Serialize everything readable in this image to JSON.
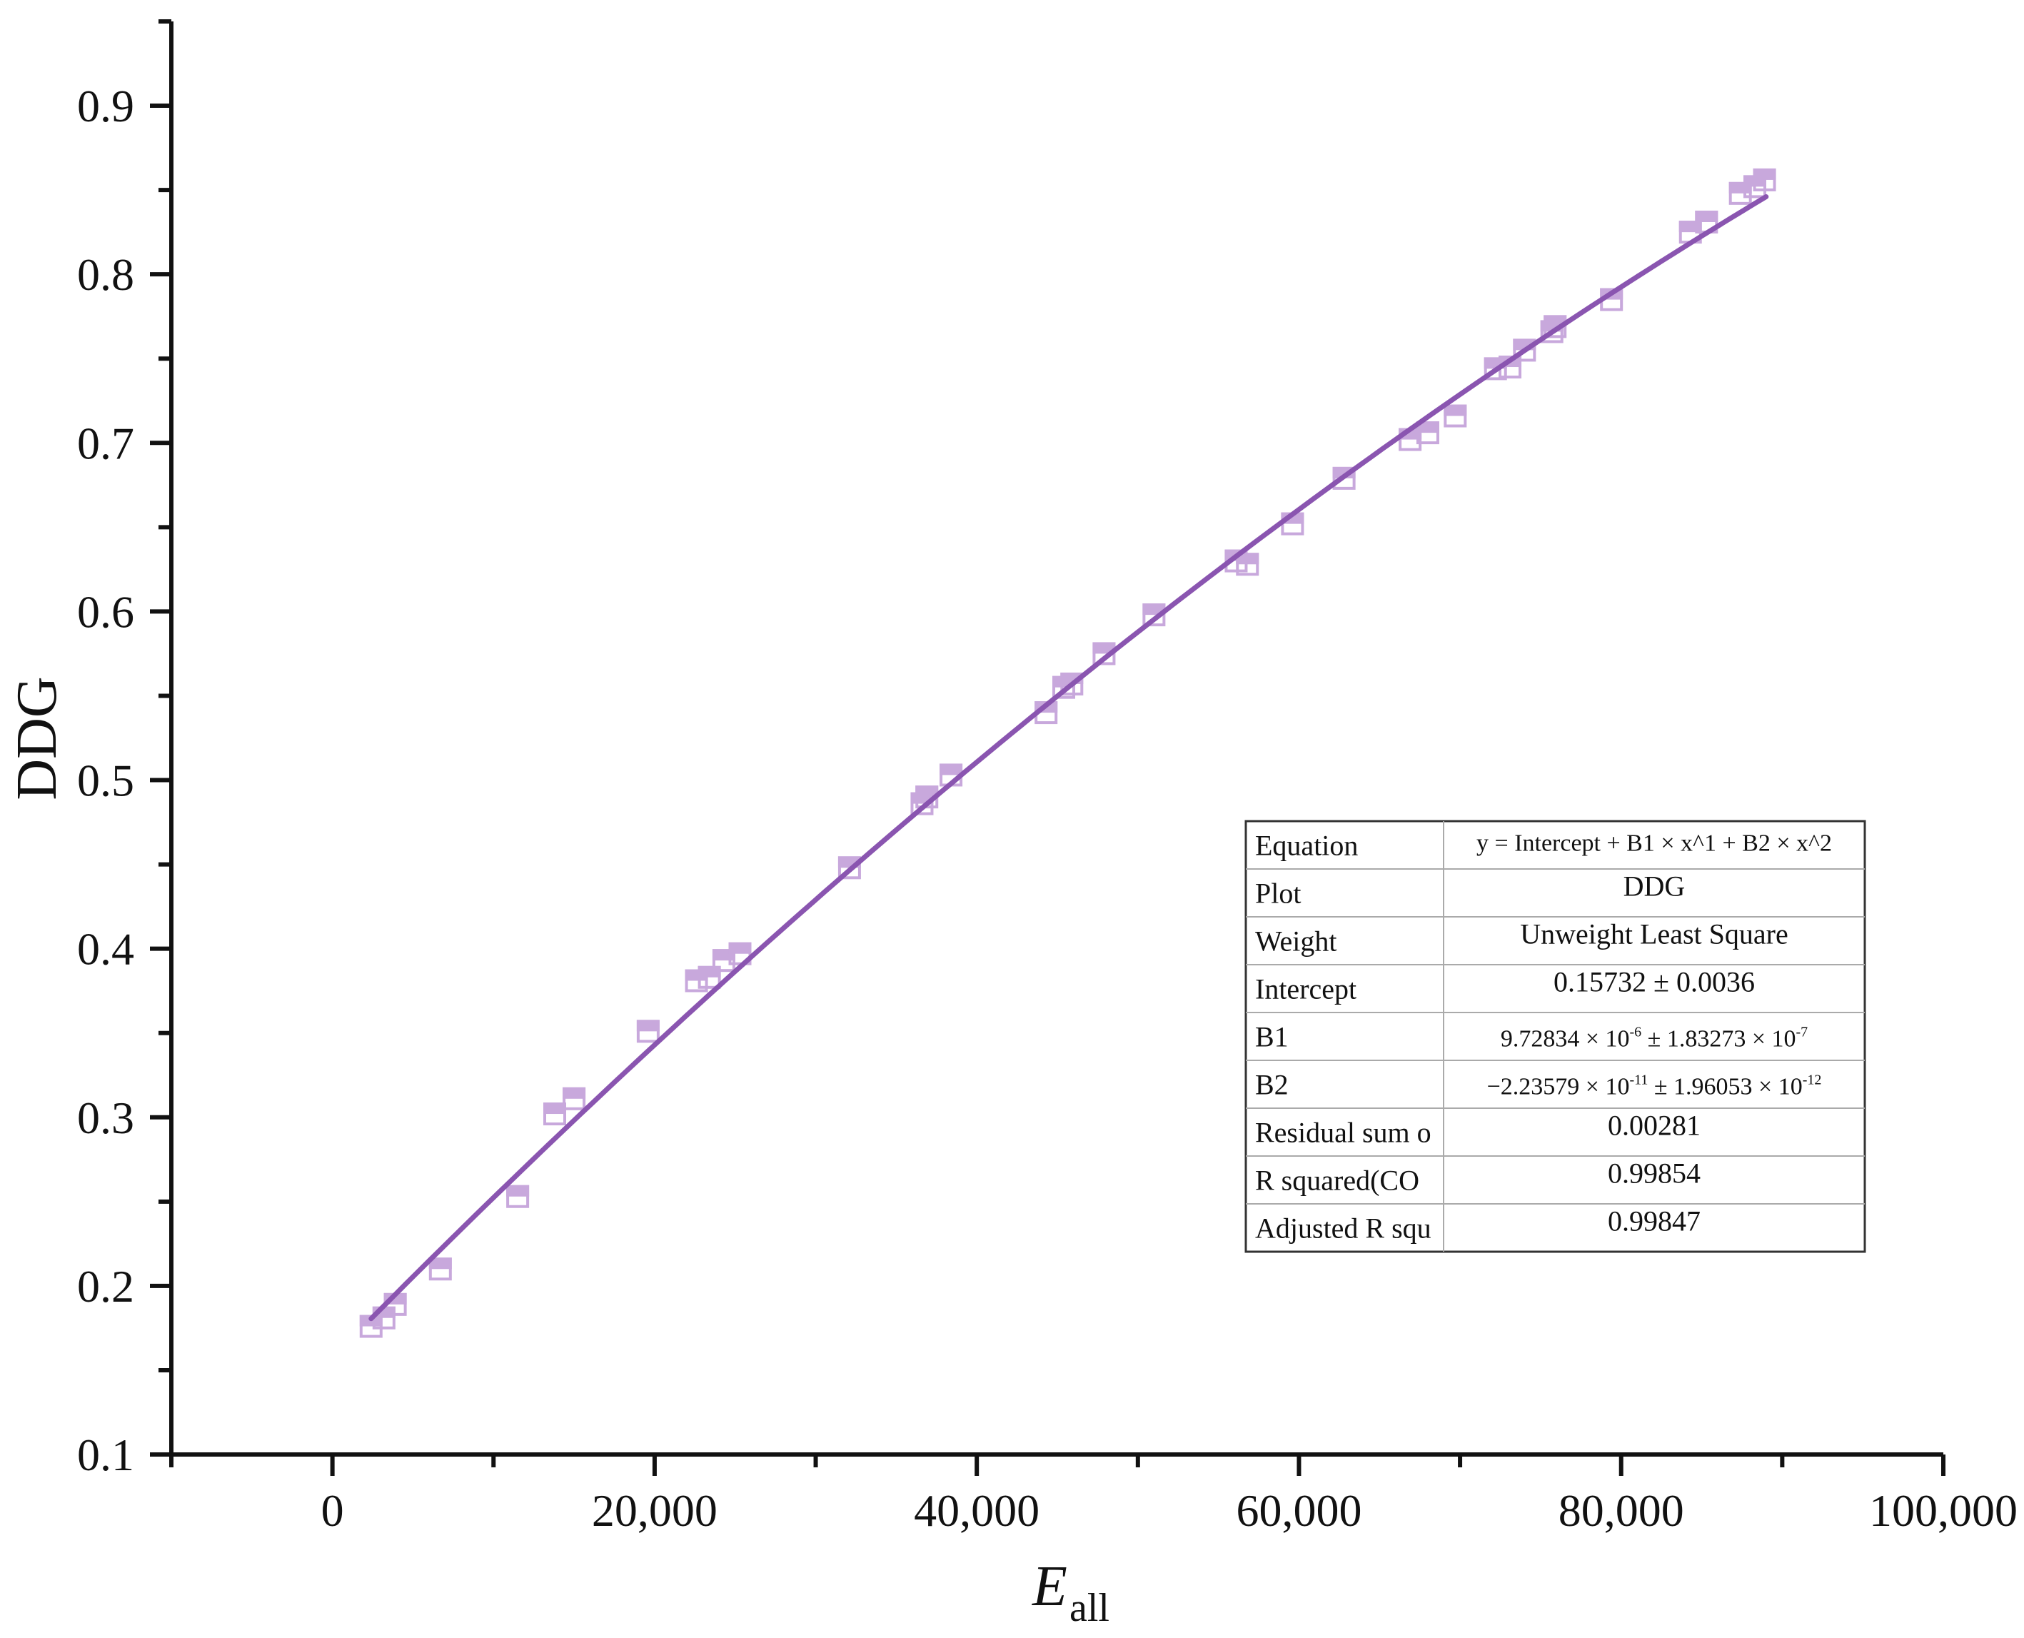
{
  "chart_data": {
    "type": "scatter",
    "xlabel": "E",
    "xlabel_subscript": "all",
    "ylabel": "DDG",
    "xlim": [
      -10000,
      100000
    ],
    "ylim": [
      0.1,
      0.95
    ],
    "x_ticks": [
      0,
      20000,
      40000,
      60000,
      80000,
      100000
    ],
    "x_tick_labels": [
      "0",
      "20,000",
      "40,000",
      "60,000",
      "80,000",
      "100,000"
    ],
    "y_ticks": [
      0.1,
      0.2,
      0.3,
      0.4,
      0.5,
      0.6,
      0.7,
      0.8,
      0.9
    ],
    "y_tick_labels": [
      "0.1",
      "0.2",
      "0.3",
      "0.4",
      "0.5",
      "0.6",
      "0.7",
      "0.8",
      "0.9"
    ],
    "grid": false,
    "colors": {
      "marker": "#c8a8dc",
      "fit_line": "#8a55b0",
      "axis": "#111111"
    },
    "series": [
      {
        "kind": "scatter",
        "marker": "half-filled-square",
        "points": [
          [
            2400,
            0.176
          ],
          [
            3200,
            0.181
          ],
          [
            3900,
            0.189
          ],
          [
            6700,
            0.21
          ],
          [
            11500,
            0.253
          ],
          [
            13800,
            0.302
          ],
          [
            15000,
            0.311
          ],
          [
            19600,
            0.351
          ],
          [
            22600,
            0.381
          ],
          [
            23400,
            0.383
          ],
          [
            24300,
            0.393
          ],
          [
            25300,
            0.397
          ],
          [
            32100,
            0.448
          ],
          [
            36600,
            0.486
          ],
          [
            36900,
            0.49
          ],
          [
            38400,
            0.503
          ],
          [
            44300,
            0.54
          ],
          [
            45400,
            0.555
          ],
          [
            45900,
            0.557
          ],
          [
            47900,
            0.575
          ],
          [
            51000,
            0.598
          ],
          [
            56100,
            0.63
          ],
          [
            56800,
            0.628
          ],
          [
            59600,
            0.652
          ],
          [
            62800,
            0.679
          ],
          [
            66900,
            0.702
          ],
          [
            68000,
            0.706
          ],
          [
            69700,
            0.716
          ],
          [
            72200,
            0.744
          ],
          [
            73100,
            0.745
          ],
          [
            74000,
            0.755
          ],
          [
            75700,
            0.766
          ],
          [
            75900,
            0.769
          ],
          [
            79400,
            0.785
          ],
          [
            84300,
            0.825
          ],
          [
            85300,
            0.831
          ],
          [
            87400,
            0.848
          ],
          [
            88300,
            0.852
          ],
          [
            88900,
            0.856
          ]
        ]
      },
      {
        "kind": "fit-line",
        "equation": {
          "intercept": 0.15732,
          "b1": 9.72834e-06,
          "b2": -2.23579e-11
        },
        "x_range": [
          2400,
          89000
        ]
      }
    ]
  },
  "fit_table": {
    "rows": [
      {
        "label": "Equation",
        "value": "y = Intercept + B1 × x^1   + B2 × x^2"
      },
      {
        "label": "Plot",
        "value": "DDG"
      },
      {
        "label": "Weight",
        "value": "Unweight Least Square"
      },
      {
        "label": "Intercept",
        "value": "0.15732 ± 0.0036"
      },
      {
        "label": "B1",
        "v1": "9.72834 × 10",
        "e1": "-6",
        "v2": "± 1.83273 × 10",
        "e2": "-7"
      },
      {
        "label": "B2",
        "v1": "−2.23579 × 10",
        "e1": "-11",
        "v2": "± 1.96053 × 10",
        "e2": "-12"
      },
      {
        "label": "Residual sum o",
        "value": "0.00281"
      },
      {
        "label": "R squared(CO",
        "value": "0.99854"
      },
      {
        "label": "Adjusted R squ",
        "value": "0.99847"
      }
    ]
  }
}
